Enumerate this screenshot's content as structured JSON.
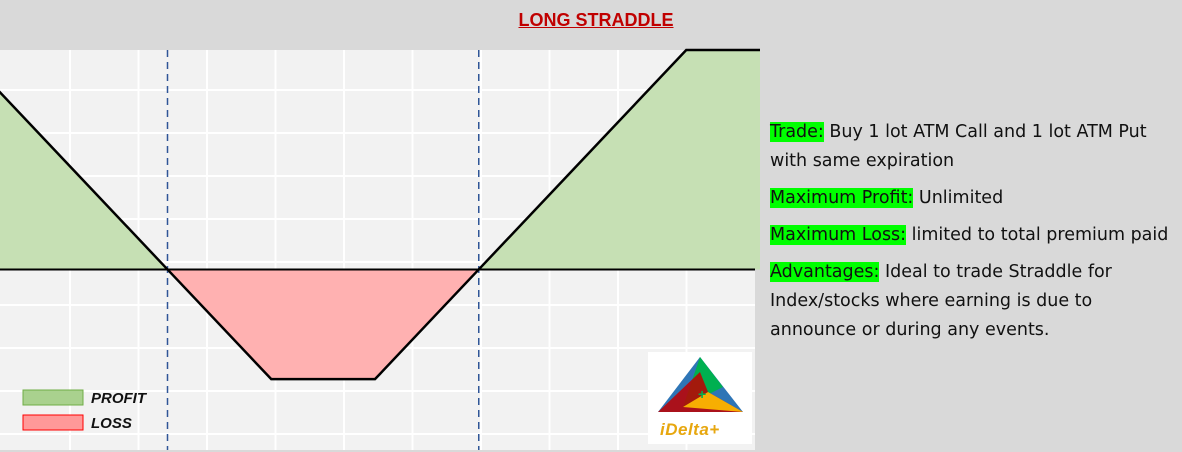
{
  "title": "LONG STRADDLE",
  "colors": {
    "profit_fill": "#c6e0b4",
    "loss_fill": "#ffb1b1",
    "payoff_line": "#000000",
    "breakeven_line": "#2f5597",
    "highlight": "#00ff00",
    "title_color": "#c00000"
  },
  "chart_data": {
    "type": "area",
    "description_free": true,
    "x": [
      0,
      2,
      4,
      6,
      8,
      10,
      12,
      14,
      16
    ],
    "y": [
      10,
      5,
      0,
      -5,
      -5,
      0,
      5,
      10,
      10
    ],
    "series": [
      {
        "values": [
          10,
          5,
          0,
          -5,
          -5,
          0,
          5,
          10,
          10
        ]
      }
    ],
    "breakevens": [
      4,
      10
    ],
    "xlim": [
      0,
      16
    ],
    "ylim": [
      -8,
      10
    ],
    "grid": true,
    "legend": [
      "PROFIT",
      "LOSS"
    ],
    "legend_position": "bottom-left"
  },
  "legend": {
    "profit": "PROFIT",
    "loss": "LOSS"
  },
  "info": {
    "trade_label": "Trade:",
    "trade_text": " Buy 1 lot ATM Call and 1 lot ATM Put with same expiration",
    "max_profit_label": "Maximum Profit:",
    "max_profit_text": " Unlimited",
    "max_loss_label": "Maximum Loss:",
    "max_loss_text": " limited to total premium paid",
    "advantages_label": "Advantages:",
    "advantages_text": " Ideal to trade Straddle for Index/stocks where earning is due to announce or during any events."
  },
  "logo": {
    "text": "iDelta+",
    "icon": "triangle-logo-icon"
  }
}
